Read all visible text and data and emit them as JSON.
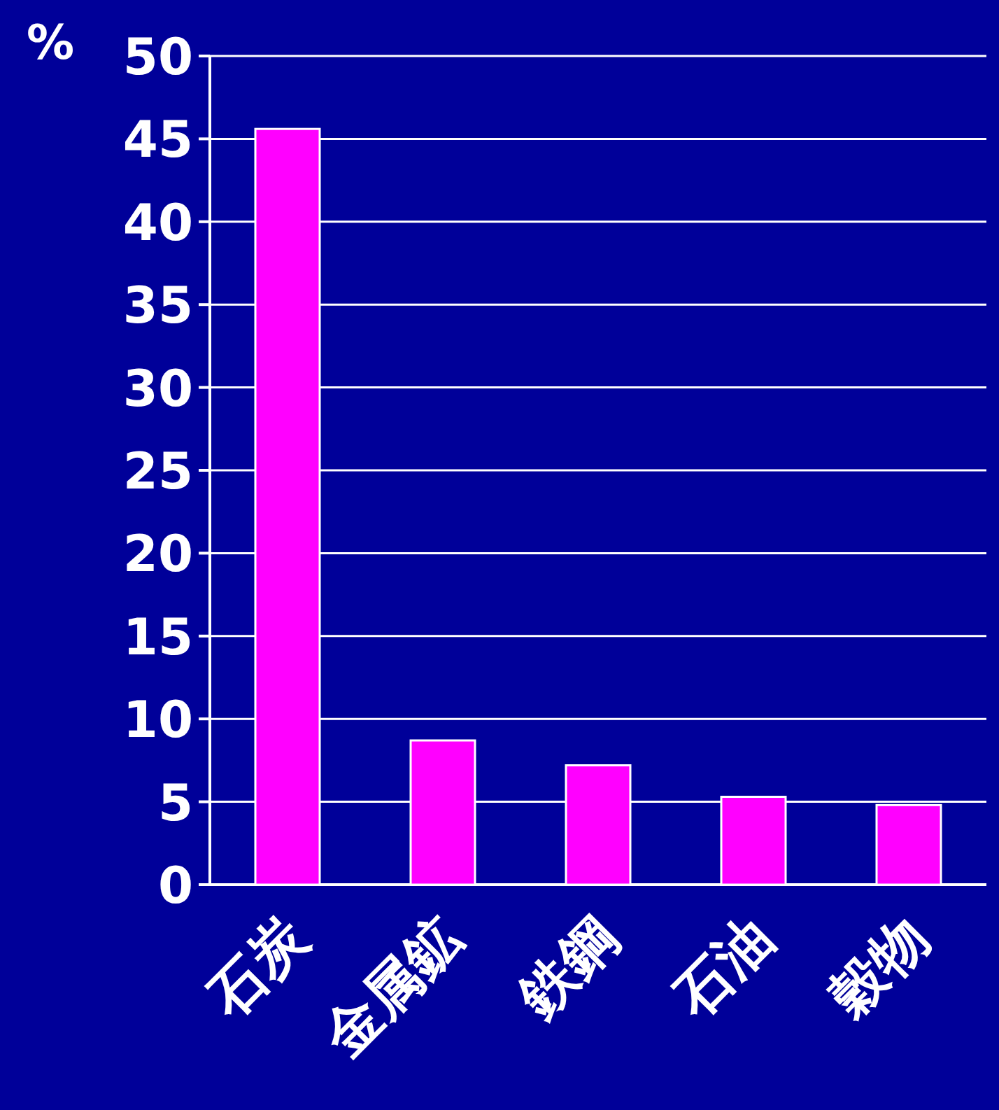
{
  "chart_data": {
    "type": "bar",
    "ylabel": "%",
    "categories": [
      "石炭",
      "金属鉱",
      "鉄鋼",
      "石油",
      "穀物"
    ],
    "values": [
      45.6,
      8.7,
      7.2,
      5.3,
      4.8
    ],
    "color": "#ff00ff",
    "ylim": [
      0,
      50
    ],
    "yticks": [
      0,
      5,
      10,
      15,
      20,
      25,
      30,
      35,
      40,
      45,
      50
    ],
    "grid": "y"
  }
}
